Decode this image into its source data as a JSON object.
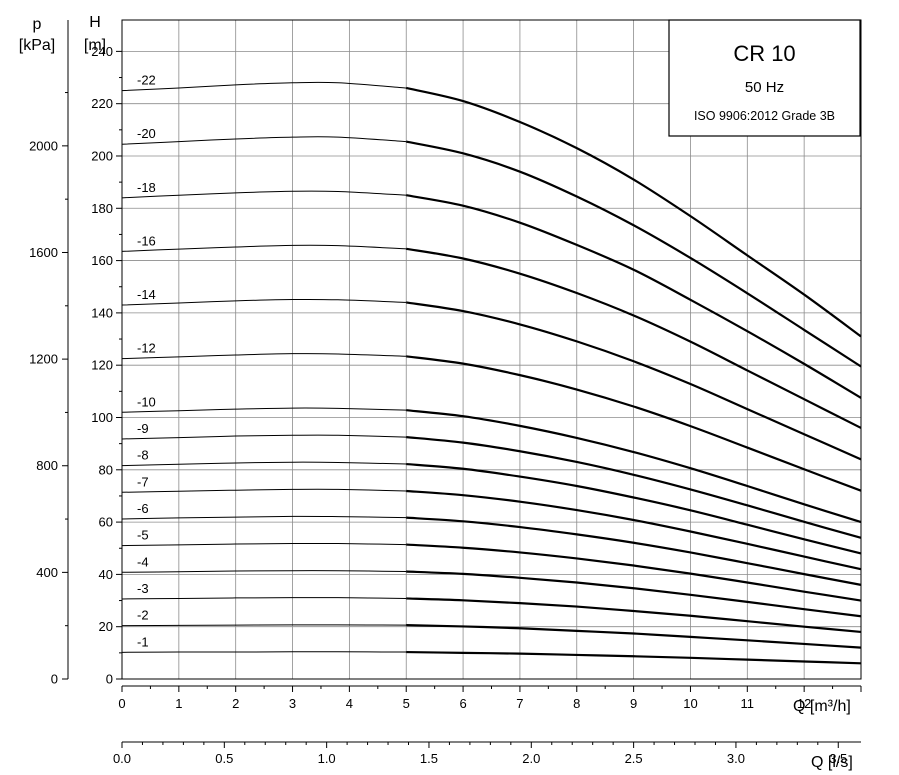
{
  "chart_data": {
    "type": "line",
    "title": "CR 10",
    "legend": {
      "title": "CR 10",
      "frequency": "50 Hz",
      "standard": "ISO 9906:2012 Grade 3B",
      "placement": "top-right"
    },
    "x": {
      "label_unit": "Q [m³/h]",
      "range": [
        0,
        13
      ],
      "ticks": [
        "0",
        "1",
        "2",
        "3",
        "4",
        "5",
        "6",
        "7",
        "8",
        "9",
        "10",
        "11",
        "12"
      ],
      "secondary": {
        "label_unit": "Q [l/s]",
        "ticks": [
          "0.0",
          "0.5",
          "1.0",
          "1.5",
          "2.0",
          "2.5",
          "3.0",
          "3.5"
        ]
      }
    },
    "y": {
      "head_label": "H",
      "head_unit": "[m]",
      "range": [
        0,
        240
      ],
      "ticks": [
        "0",
        "20",
        "40",
        "60",
        "80",
        "100",
        "120",
        "140",
        "160",
        "180",
        "200",
        "220",
        "240"
      ],
      "pressure_label": "p",
      "pressure_unit": "[kPa]",
      "pressure_ticks": [
        "0",
        "400",
        "800",
        "1200",
        "1600",
        "2000"
      ]
    },
    "grid": true,
    "operating_range_start_q": 5,
    "series": [
      {
        "name": "-22",
        "x": [
          0,
          1,
          2,
          3,
          3.8,
          5,
          6,
          7,
          8,
          9,
          10,
          11,
          12,
          13
        ],
        "y": [
          225,
          226,
          227.2,
          228,
          228,
          226,
          221,
          213,
          203,
          191,
          177,
          162,
          147,
          131
        ]
      },
      {
        "name": "-20",
        "x": [
          0,
          1,
          2,
          3,
          3.8,
          5,
          6,
          7,
          8,
          9,
          10,
          11,
          12,
          13
        ],
        "y": [
          204.5,
          205.5,
          206.5,
          207.2,
          207.2,
          205.5,
          201,
          194,
          184.5,
          173.5,
          161,
          147.5,
          133.5,
          119.5
        ]
      },
      {
        "name": "-18",
        "x": [
          0,
          1,
          2,
          3,
          3.8,
          5,
          6,
          7,
          8,
          9,
          10,
          11,
          12,
          13
        ],
        "y": [
          184,
          185,
          185.9,
          186.5,
          186.4,
          185,
          181,
          174.5,
          166,
          156.5,
          145,
          133,
          120.5,
          107.5
        ]
      },
      {
        "name": "-16",
        "x": [
          0,
          1,
          2,
          3,
          3.8,
          5,
          6,
          7,
          8,
          9,
          10,
          11,
          12,
          13
        ],
        "y": [
          163.5,
          164.4,
          165.2,
          165.8,
          165.7,
          164.5,
          160.8,
          155,
          147.6,
          139,
          129,
          118,
          107,
          96
        ]
      },
      {
        "name": "-14",
        "x": [
          0,
          1,
          2,
          3,
          3.8,
          5,
          6,
          7,
          8,
          9,
          10,
          11,
          12,
          13
        ],
        "y": [
          143,
          143.8,
          144.6,
          145.1,
          145,
          144,
          140.7,
          135.6,
          129.1,
          121.5,
          112.8,
          103.2,
          93.6,
          84
        ]
      },
      {
        "name": "-12",
        "x": [
          0,
          1,
          2,
          3,
          3.8,
          5,
          6,
          7,
          8,
          9,
          10,
          11,
          12,
          13
        ],
        "y": [
          122.5,
          123.2,
          123.9,
          124.4,
          124.3,
          123.4,
          120.6,
          116.2,
          110.7,
          104.2,
          96.7,
          88.5,
          80.2,
          72
        ]
      },
      {
        "name": "-10",
        "x": [
          0,
          1,
          2,
          3,
          3.8,
          5,
          6,
          7,
          8,
          9,
          10,
          11,
          12,
          13
        ],
        "y": [
          102,
          102.6,
          103.2,
          103.6,
          103.5,
          102.8,
          100.5,
          96.8,
          92.2,
          86.8,
          80.6,
          73.8,
          66.8,
          60
        ]
      },
      {
        "name": "-9",
        "x": [
          0,
          1,
          2,
          3,
          3.8,
          5,
          6,
          7,
          8,
          9,
          10,
          11,
          12,
          13
        ],
        "y": [
          91.8,
          92.3,
          92.9,
          93.2,
          93.2,
          92.5,
          90.4,
          87.1,
          83,
          78.1,
          72.5,
          66.4,
          60.1,
          54
        ]
      },
      {
        "name": "-8",
        "x": [
          0,
          1,
          2,
          3,
          3.8,
          5,
          6,
          7,
          8,
          9,
          10,
          11,
          12,
          13
        ],
        "y": [
          81.6,
          82.1,
          82.6,
          82.9,
          82.8,
          82.2,
          80.4,
          77.4,
          73.8,
          69.4,
          64.5,
          59,
          53.4,
          48
        ]
      },
      {
        "name": "-7",
        "x": [
          0,
          1,
          2,
          3,
          3.8,
          5,
          6,
          7,
          8,
          9,
          10,
          11,
          12,
          13
        ],
        "y": [
          71.4,
          71.8,
          72.2,
          72.5,
          72.5,
          71.9,
          70.3,
          67.8,
          64.6,
          60.8,
          56.4,
          51.7,
          46.8,
          42
        ]
      },
      {
        "name": "-6",
        "x": [
          0,
          1,
          2,
          3,
          3.8,
          5,
          6,
          7,
          8,
          9,
          10,
          11,
          12,
          13
        ],
        "y": [
          61.2,
          61.6,
          61.9,
          62.2,
          62.1,
          61.7,
          60.3,
          58.1,
          55.3,
          52.1,
          48.4,
          44.3,
          40.1,
          36
        ]
      },
      {
        "name": "-5",
        "x": [
          0,
          1,
          2,
          3,
          3.8,
          5,
          6,
          7,
          8,
          9,
          10,
          11,
          12,
          13
        ],
        "y": [
          51,
          51.3,
          51.6,
          51.8,
          51.8,
          51.4,
          50.2,
          48.4,
          46.1,
          43.4,
          40.3,
          36.9,
          33.4,
          30
        ]
      },
      {
        "name": "-4",
        "x": [
          0,
          1,
          2,
          3,
          3.8,
          5,
          6,
          7,
          8,
          9,
          10,
          11,
          12,
          13
        ],
        "y": [
          40.8,
          41,
          41.3,
          41.4,
          41.4,
          41.1,
          40.2,
          38.7,
          36.9,
          34.7,
          32.2,
          29.5,
          26.7,
          24
        ]
      },
      {
        "name": "-3",
        "x": [
          0,
          1,
          2,
          3,
          3.8,
          5,
          6,
          7,
          8,
          9,
          10,
          11,
          12,
          13
        ],
        "y": [
          30.6,
          30.8,
          31,
          31.1,
          31.1,
          30.8,
          30.1,
          29,
          27.7,
          26,
          24.2,
          22.1,
          20,
          18
        ]
      },
      {
        "name": "-2",
        "x": [
          0,
          1,
          2,
          3,
          3.8,
          5,
          6,
          7,
          8,
          9,
          10,
          11,
          12,
          13
        ],
        "y": [
          20.4,
          20.5,
          20.6,
          20.7,
          20.7,
          20.6,
          20.1,
          19.4,
          18.4,
          17.4,
          16.1,
          14.8,
          13.4,
          12
        ]
      },
      {
        "name": "-1",
        "x": [
          0,
          1,
          2,
          3,
          3.8,
          5,
          6,
          7,
          8,
          9,
          10,
          11,
          12,
          13
        ],
        "y": [
          10.2,
          10.3,
          10.3,
          10.4,
          10.4,
          10.3,
          10,
          9.7,
          9.2,
          8.7,
          8.1,
          7.4,
          6.7,
          6
        ]
      }
    ]
  }
}
